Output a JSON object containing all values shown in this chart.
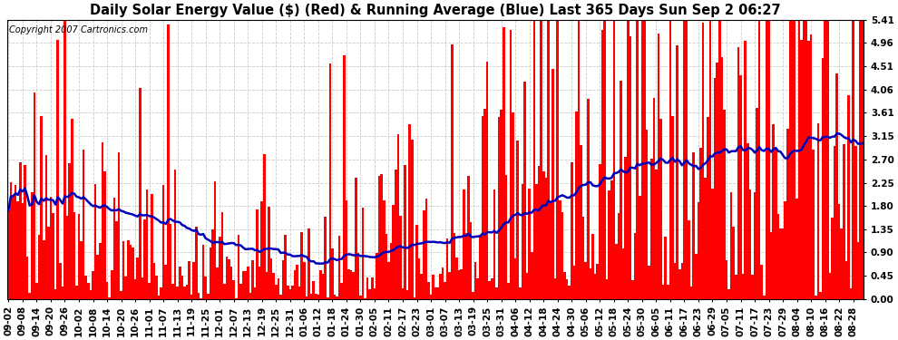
{
  "title": "Daily Solar Energy Value ($) (Red) & Running Average (Blue) Last 365 Days Sun Sep 2 06:27",
  "copyright": "Copyright 2007 Cartronics.com",
  "yticks": [
    0.0,
    0.45,
    0.9,
    1.35,
    1.8,
    2.25,
    2.7,
    3.15,
    3.61,
    4.06,
    4.51,
    4.96,
    5.41
  ],
  "ylim": [
    0.0,
    5.41
  ],
  "bar_color": "#ff0000",
  "avg_color": "#0000bb",
  "bg_color": "#ffffff",
  "grid_color": "#cccccc",
  "title_fontsize": 10.5,
  "tick_fontsize": 7.5,
  "copyright_fontsize": 7,
  "xtick_labels": [
    "09-02",
    "09-08",
    "09-14",
    "09-20",
    "09-26",
    "10-02",
    "10-08",
    "10-14",
    "10-20",
    "10-26",
    "11-01",
    "11-07",
    "11-13",
    "11-19",
    "11-25",
    "12-01",
    "12-07",
    "12-13",
    "12-19",
    "12-25",
    "12-31",
    "01-06",
    "01-12",
    "01-18",
    "01-24",
    "01-30",
    "02-05",
    "02-11",
    "02-17",
    "02-23",
    "03-01",
    "03-07",
    "03-13",
    "03-19",
    "03-25",
    "03-31",
    "04-06",
    "04-12",
    "04-18",
    "04-24",
    "04-30",
    "05-06",
    "05-12",
    "05-18",
    "05-24",
    "05-30",
    "06-05",
    "06-11",
    "06-17",
    "06-23",
    "06-29",
    "07-05",
    "07-11",
    "07-17",
    "07-23",
    "07-29",
    "08-04",
    "08-10",
    "08-16",
    "08-22",
    "08-28"
  ]
}
